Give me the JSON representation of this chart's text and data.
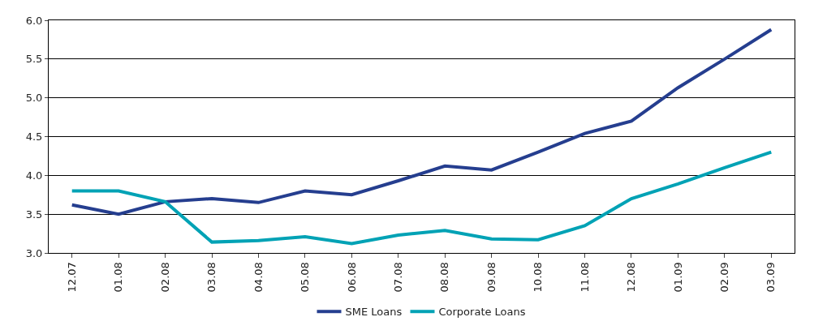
{
  "chart_data": {
    "type": "line",
    "categories": [
      "12.07",
      "01.08",
      "02.08",
      "03.08",
      "04.08",
      "05.08",
      "06.08",
      "07.08",
      "08.08",
      "09.08",
      "10.08",
      "11.08",
      "12.08",
      "01.09",
      "02.09",
      "03.09"
    ],
    "series": [
      {
        "name": "SME Loans",
        "color": "#253e8f",
        "values": [
          3.62,
          3.5,
          3.66,
          3.7,
          3.65,
          3.8,
          3.75,
          3.93,
          4.12,
          4.07,
          4.3,
          4.54,
          4.7,
          5.13,
          5.5,
          5.88
        ]
      },
      {
        "name": "Corporate Loans",
        "color": "#00a2b5",
        "values": [
          3.8,
          3.8,
          3.66,
          3.14,
          3.16,
          3.21,
          3.12,
          3.23,
          3.29,
          3.18,
          3.17,
          3.35,
          3.7,
          3.89,
          4.1,
          4.3
        ]
      }
    ],
    "ylim": [
      3.0,
      6.0
    ],
    "yticks": [
      {
        "value": 3.0,
        "label": "3.0"
      },
      {
        "value": 3.5,
        "label": "3.5"
      },
      {
        "value": 4.0,
        "label": "4.0"
      },
      {
        "value": 4.5,
        "label": "4.5"
      },
      {
        "value": 5.0,
        "label": "5.0"
      },
      {
        "value": 5.5,
        "label": "5.5"
      },
      {
        "value": 6.0,
        "label": "6.0"
      }
    ],
    "grid": "y",
    "legend": "bottom",
    "marker": "none",
    "line_style": "solid"
  }
}
